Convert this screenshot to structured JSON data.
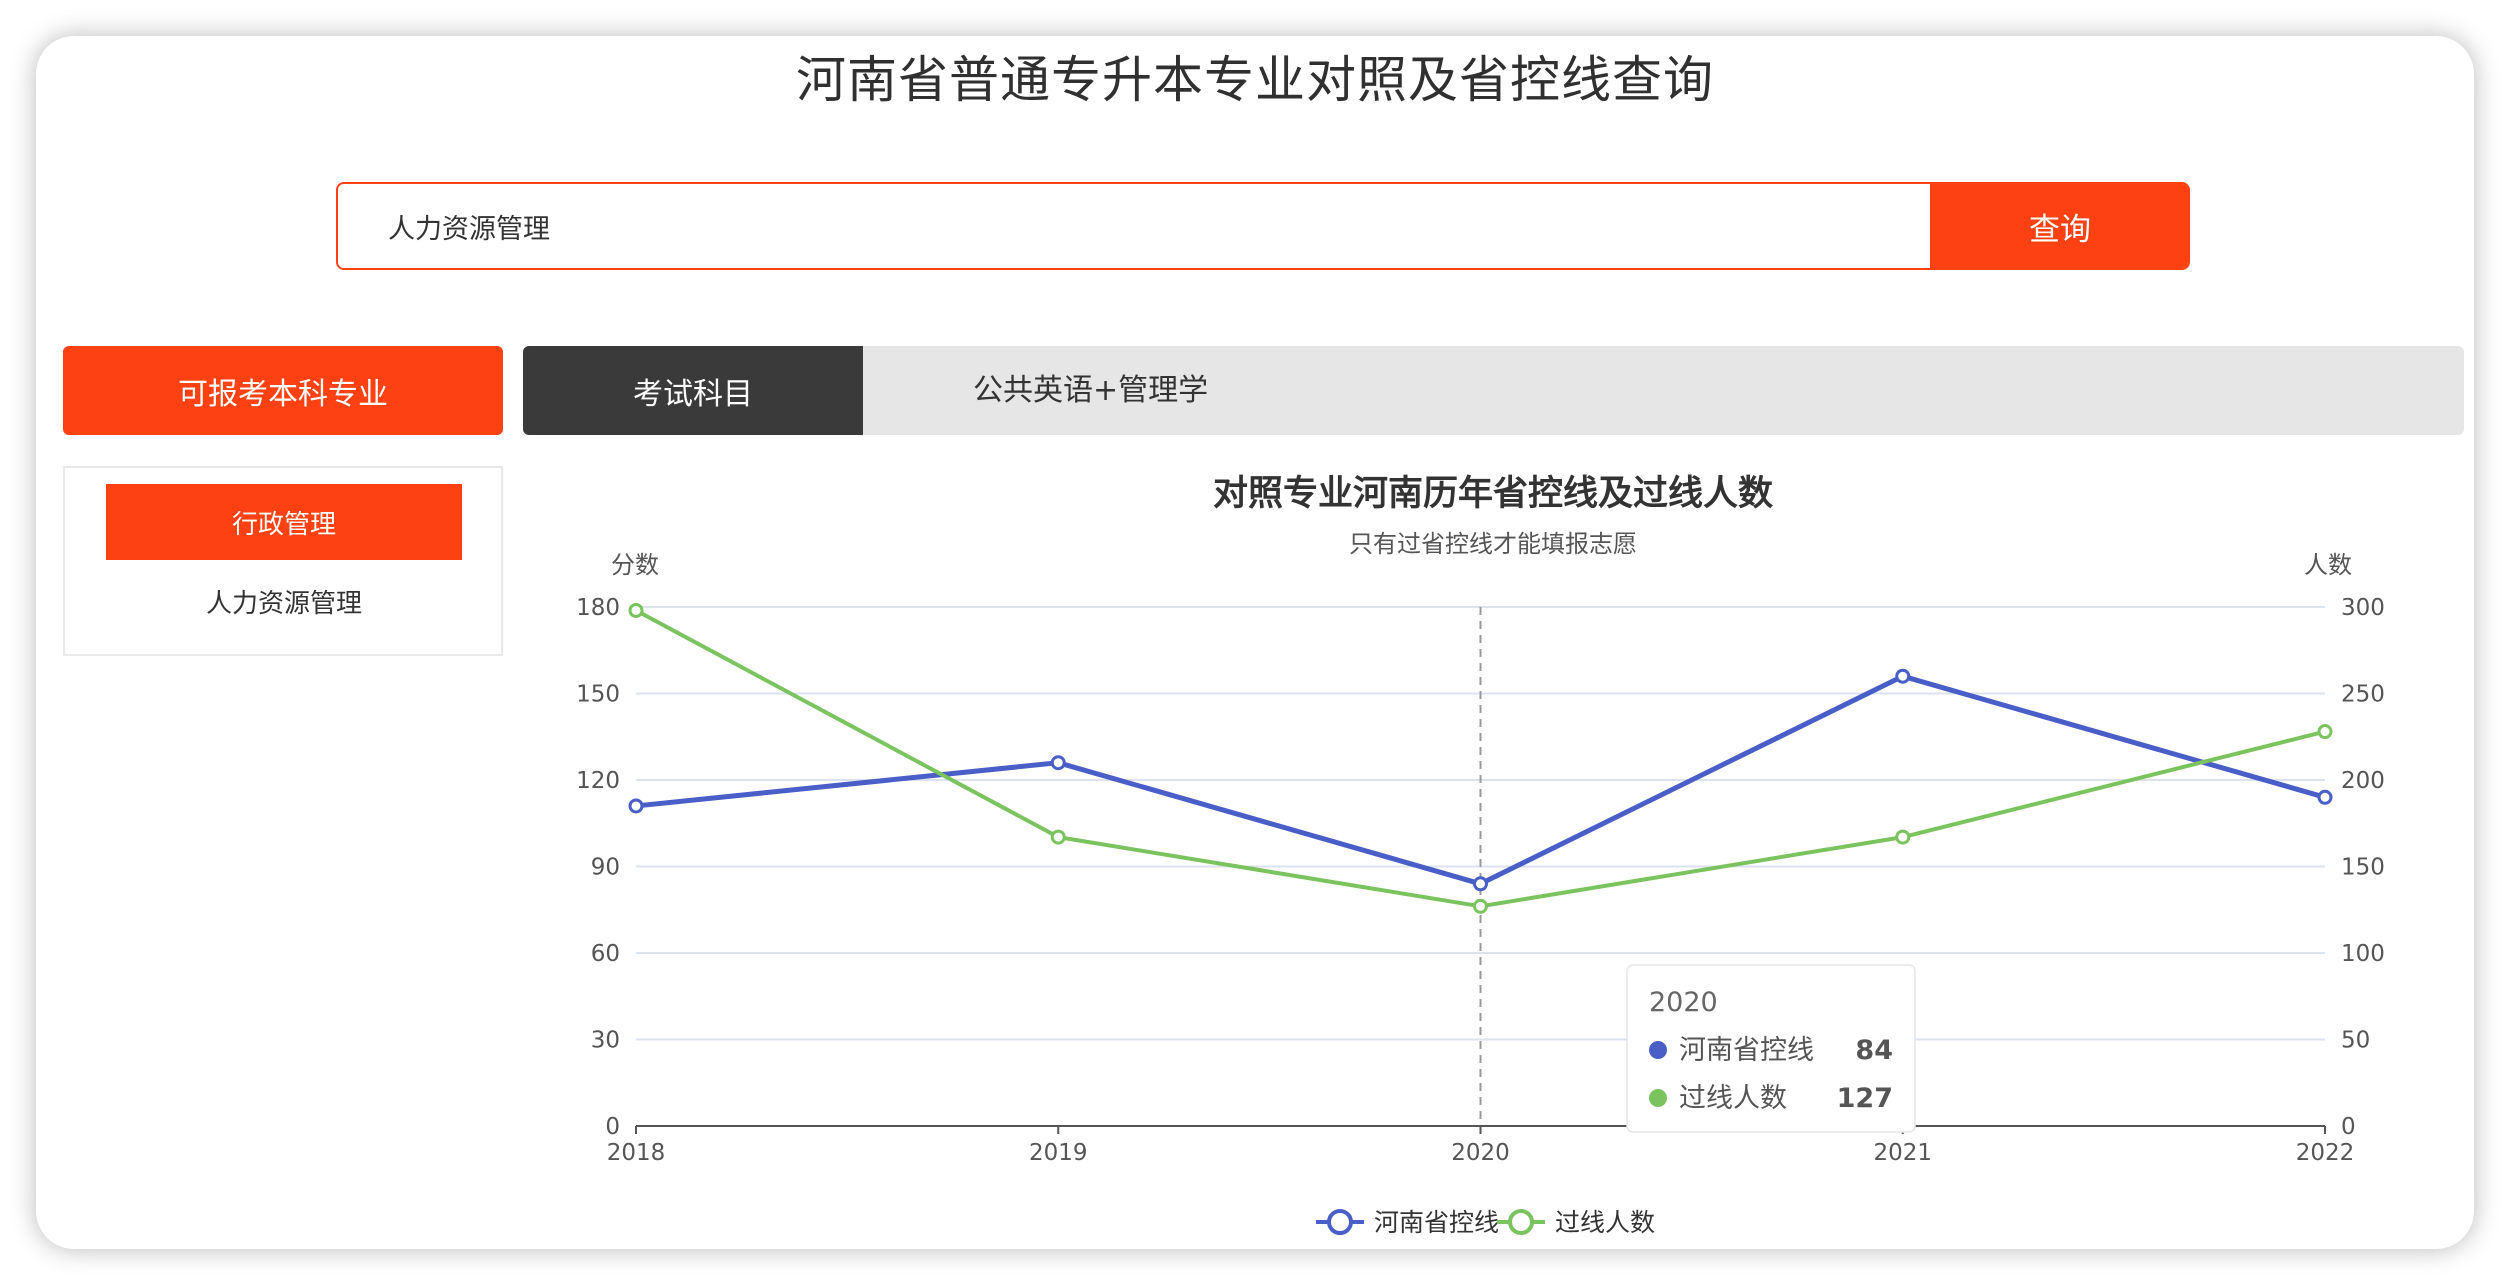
{
  "page": {
    "title": "河南省普通专升本专业对照及省控线查询"
  },
  "search": {
    "value": "人力资源管理",
    "button_label": "查询"
  },
  "left_tab": {
    "label": "可报考本科专业"
  },
  "exam": {
    "label": "考试科目",
    "value": "公共英语+管理学"
  },
  "majors": [
    {
      "label": "行政管理",
      "active": true
    },
    {
      "label": "人力资源管理",
      "active": false
    }
  ],
  "colors": {
    "accent": "#fe4112",
    "series_blue": "#4a5ec8",
    "series_green": "#7bc35f"
  },
  "chart_data": {
    "type": "line",
    "title": "对照专业河南历年省控线及过线人数",
    "subtitle": "只有过省控线才能填报志愿",
    "y_left_label": "分数",
    "y_right_label": "人数",
    "x": [
      "2018",
      "2019",
      "2020",
      "2021",
      "2022"
    ],
    "y_left_ticks": [
      "0",
      "30",
      "60",
      "90",
      "120",
      "150",
      "180"
    ],
    "y_right_ticks": [
      "0",
      "50",
      "100",
      "150",
      "200",
      "250",
      "300"
    ],
    "y_left_range": [
      0,
      180
    ],
    "y_right_range": [
      0,
      300
    ],
    "series": [
      {
        "name": "河南省控线",
        "axis": "left",
        "color": "#4a5ec8",
        "values": [
          111,
          126,
          84,
          156,
          114
        ]
      },
      {
        "name": "过线人数",
        "axis": "right",
        "color": "#7bc35f",
        "values": [
          298,
          167,
          127,
          167,
          228
        ]
      }
    ],
    "grid": true,
    "legend": "bottom-center",
    "tooltip": {
      "title": "2020",
      "items": [
        {
          "name": "河南省控线",
          "value": "84"
        },
        {
          "name": "过线人数",
          "value": "127"
        }
      ]
    }
  }
}
